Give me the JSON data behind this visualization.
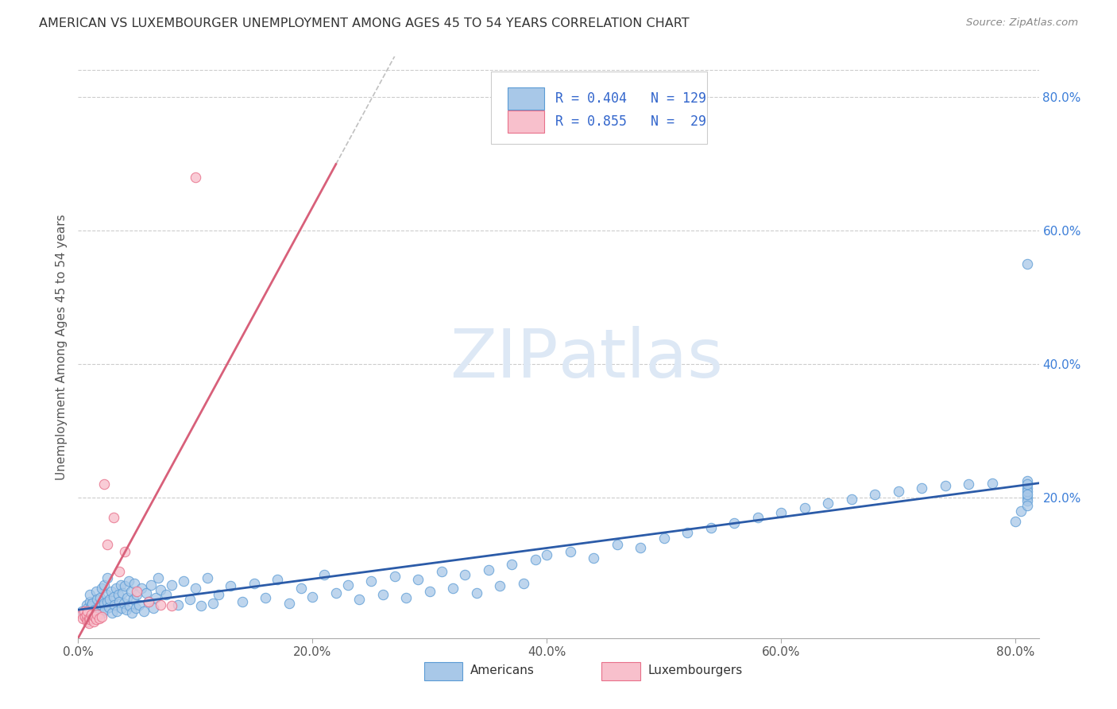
{
  "title": "AMERICAN VS LUXEMBOURGER UNEMPLOYMENT AMONG AGES 45 TO 54 YEARS CORRELATION CHART",
  "source": "Source: ZipAtlas.com",
  "ylabel": "Unemployment Among Ages 45 to 54 years",
  "xlim": [
    0,
    0.82
  ],
  "ylim": [
    -0.01,
    0.86
  ],
  "xtick_labels": [
    "0.0%",
    "20.0%",
    "40.0%",
    "60.0%",
    "80.0%"
  ],
  "xtick_vals": [
    0.0,
    0.2,
    0.4,
    0.6,
    0.8
  ],
  "ytick_labels": [
    "20.0%",
    "40.0%",
    "60.0%",
    "80.0%"
  ],
  "ytick_vals": [
    0.2,
    0.4,
    0.6,
    0.8
  ],
  "american_color": "#A8C8E8",
  "american_edge_color": "#5B9BD5",
  "luxembourger_color": "#F8C0CC",
  "luxembourger_edge_color": "#E8708A",
  "american_R": 0.404,
  "american_N": 129,
  "luxembourger_R": 0.855,
  "luxembourger_N": 29,
  "legend_R_color": "#3366CC",
  "trend_american_color": "#2B5BA8",
  "trend_luxembourger_color": "#D8607A",
  "trend_lux_dashed_color": "#C0C0C0",
  "watermark_color": "#DDE8F5",
  "background_color": "#FFFFFF",
  "americans_x": [
    0.003,
    0.005,
    0.007,
    0.008,
    0.009,
    0.01,
    0.01,
    0.011,
    0.012,
    0.013,
    0.014,
    0.015,
    0.015,
    0.016,
    0.017,
    0.018,
    0.019,
    0.02,
    0.02,
    0.021,
    0.022,
    0.022,
    0.023,
    0.024,
    0.025,
    0.025,
    0.026,
    0.027,
    0.028,
    0.029,
    0.03,
    0.031,
    0.032,
    0.033,
    0.034,
    0.035,
    0.036,
    0.037,
    0.038,
    0.039,
    0.04,
    0.041,
    0.042,
    0.043,
    0.044,
    0.045,
    0.046,
    0.047,
    0.048,
    0.049,
    0.05,
    0.052,
    0.054,
    0.056,
    0.058,
    0.06,
    0.062,
    0.064,
    0.066,
    0.068,
    0.07,
    0.075,
    0.08,
    0.085,
    0.09,
    0.095,
    0.1,
    0.105,
    0.11,
    0.115,
    0.12,
    0.13,
    0.14,
    0.15,
    0.16,
    0.17,
    0.18,
    0.19,
    0.2,
    0.21,
    0.22,
    0.23,
    0.24,
    0.25,
    0.26,
    0.27,
    0.28,
    0.29,
    0.3,
    0.31,
    0.32,
    0.33,
    0.34,
    0.35,
    0.36,
    0.37,
    0.38,
    0.39,
    0.4,
    0.42,
    0.44,
    0.46,
    0.48,
    0.5,
    0.52,
    0.54,
    0.56,
    0.58,
    0.6,
    0.62,
    0.64,
    0.66,
    0.68,
    0.7,
    0.72,
    0.74,
    0.76,
    0.78,
    0.8,
    0.805,
    0.81,
    0.81,
    0.81,
    0.81,
    0.81,
    0.81,
    0.81,
    0.81,
    0.81
  ],
  "americans_y": [
    0.03,
    0.025,
    0.04,
    0.035,
    0.02,
    0.045,
    0.055,
    0.038,
    0.042,
    0.028,
    0.033,
    0.06,
    0.022,
    0.048,
    0.035,
    0.025,
    0.05,
    0.038,
    0.065,
    0.028,
    0.042,
    0.07,
    0.032,
    0.055,
    0.044,
    0.08,
    0.036,
    0.048,
    0.06,
    0.028,
    0.052,
    0.04,
    0.065,
    0.03,
    0.055,
    0.045,
    0.07,
    0.035,
    0.058,
    0.042,
    0.068,
    0.032,
    0.05,
    0.075,
    0.038,
    0.06,
    0.028,
    0.048,
    0.072,
    0.035,
    0.055,
    0.04,
    0.065,
    0.03,
    0.058,
    0.045,
    0.07,
    0.035,
    0.05,
    0.08,
    0.062,
    0.055,
    0.07,
    0.04,
    0.075,
    0.048,
    0.065,
    0.038,
    0.08,
    0.042,
    0.055,
    0.068,
    0.045,
    0.072,
    0.05,
    0.078,
    0.042,
    0.065,
    0.052,
    0.085,
    0.058,
    0.07,
    0.048,
    0.075,
    0.055,
    0.082,
    0.05,
    0.078,
    0.06,
    0.09,
    0.065,
    0.085,
    0.058,
    0.092,
    0.068,
    0.1,
    0.072,
    0.108,
    0.115,
    0.12,
    0.11,
    0.13,
    0.125,
    0.14,
    0.148,
    0.155,
    0.162,
    0.17,
    0.178,
    0.185,
    0.192,
    0.198,
    0.205,
    0.21,
    0.215,
    0.218,
    0.22,
    0.222,
    0.165,
    0.18,
    0.2,
    0.195,
    0.188,
    0.215,
    0.225,
    0.21,
    0.55,
    0.22,
    0.205
  ],
  "luxembourgers_x": [
    0.003,
    0.004,
    0.005,
    0.006,
    0.007,
    0.007,
    0.008,
    0.008,
    0.009,
    0.009,
    0.01,
    0.011,
    0.012,
    0.013,
    0.014,
    0.015,
    0.016,
    0.018,
    0.02,
    0.022,
    0.025,
    0.03,
    0.035,
    0.04,
    0.05,
    0.06,
    0.07,
    0.08,
    0.1
  ],
  "luxembourgers_y": [
    0.025,
    0.02,
    0.03,
    0.022,
    0.018,
    0.025,
    0.015,
    0.03,
    0.02,
    0.012,
    0.018,
    0.025,
    0.02,
    0.015,
    0.022,
    0.018,
    0.025,
    0.02,
    0.022,
    0.22,
    0.13,
    0.17,
    0.09,
    0.12,
    0.06,
    0.045,
    0.04,
    0.038,
    0.68
  ]
}
